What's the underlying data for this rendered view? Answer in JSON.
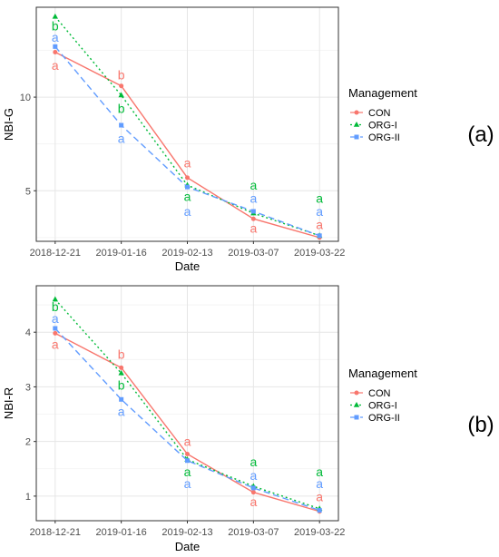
{
  "chart_data": [
    {
      "type": "line",
      "panel_tag": "(a)",
      "xlabel": "Date",
      "ylabel": "NBI-G",
      "categories": [
        "2018-12-21",
        "2019-01-16",
        "2019-02-13",
        "2019-03-07",
        "2019-03-22"
      ],
      "yticks": [
        5,
        10
      ],
      "ylim": [
        2.3,
        14.8
      ],
      "grid": true,
      "legend": {
        "title": "Management",
        "position": "right"
      },
      "series": [
        {
          "name": "CON",
          "color": "#F8766D",
          "marker": "circle",
          "dash": "solid",
          "values": [
            12.4,
            10.6,
            5.7,
            3.5,
            2.5
          ],
          "letters": [
            "a",
            "b",
            "a",
            "a",
            "a"
          ],
          "letter_y": [
            11.7,
            11.2,
            6.5,
            3.0,
            3.2
          ]
        },
        {
          "name": "ORG-I",
          "color": "#00BA38",
          "marker": "triangle",
          "dash": "dotted",
          "values": [
            14.3,
            10.1,
            5.3,
            3.8,
            2.6
          ],
          "letters": [
            "b",
            "b",
            "a",
            "a",
            "a"
          ],
          "letter_y": [
            13.8,
            9.4,
            4.7,
            5.3,
            4.6
          ]
        },
        {
          "name": "ORG-II",
          "color": "#619CFF",
          "marker": "square",
          "dash": "dashed",
          "values": [
            12.7,
            8.5,
            5.2,
            3.9,
            2.6
          ],
          "letters": [
            "a",
            "a",
            "a",
            "a",
            "a"
          ],
          "letter_y": [
            13.2,
            7.8,
            3.9,
            4.6,
            3.9
          ]
        }
      ]
    },
    {
      "type": "line",
      "panel_tag": "(b)",
      "xlabel": "Date",
      "ylabel": "NBI-R",
      "categories": [
        "2018-12-21",
        "2019-01-16",
        "2019-02-13",
        "2019-03-07",
        "2019-03-22"
      ],
      "yticks": [
        1,
        2,
        3,
        4
      ],
      "ylim": [
        0.55,
        4.85
      ],
      "grid": true,
      "legend": {
        "title": "Management",
        "position": "right"
      },
      "series": [
        {
          "name": "CON",
          "color": "#F8766D",
          "marker": "circle",
          "dash": "solid",
          "values": [
            3.98,
            3.35,
            1.77,
            1.07,
            0.72
          ],
          "letters": [
            "a",
            "b",
            "a",
            "a",
            "a"
          ],
          "letter_y": [
            3.78,
            3.6,
            2.0,
            0.9,
            0.99
          ]
        },
        {
          "name": "ORG-I",
          "color": "#00BA38",
          "marker": "triangle",
          "dash": "dotted",
          "values": [
            4.6,
            3.25,
            1.67,
            1.18,
            0.77
          ],
          "letters": [
            "b",
            "b",
            "a",
            "a",
            "a"
          ],
          "letter_y": [
            4.47,
            3.03,
            1.45,
            1.63,
            1.45
          ]
        },
        {
          "name": "ORG-II",
          "color": "#619CFF",
          "marker": "square",
          "dash": "dashed",
          "values": [
            4.07,
            2.77,
            1.65,
            1.15,
            0.74
          ],
          "letters": [
            "a",
            "a",
            "a",
            "a",
            "a"
          ],
          "letter_y": [
            4.25,
            2.55,
            1.23,
            1.38,
            1.23
          ]
        }
      ]
    }
  ]
}
